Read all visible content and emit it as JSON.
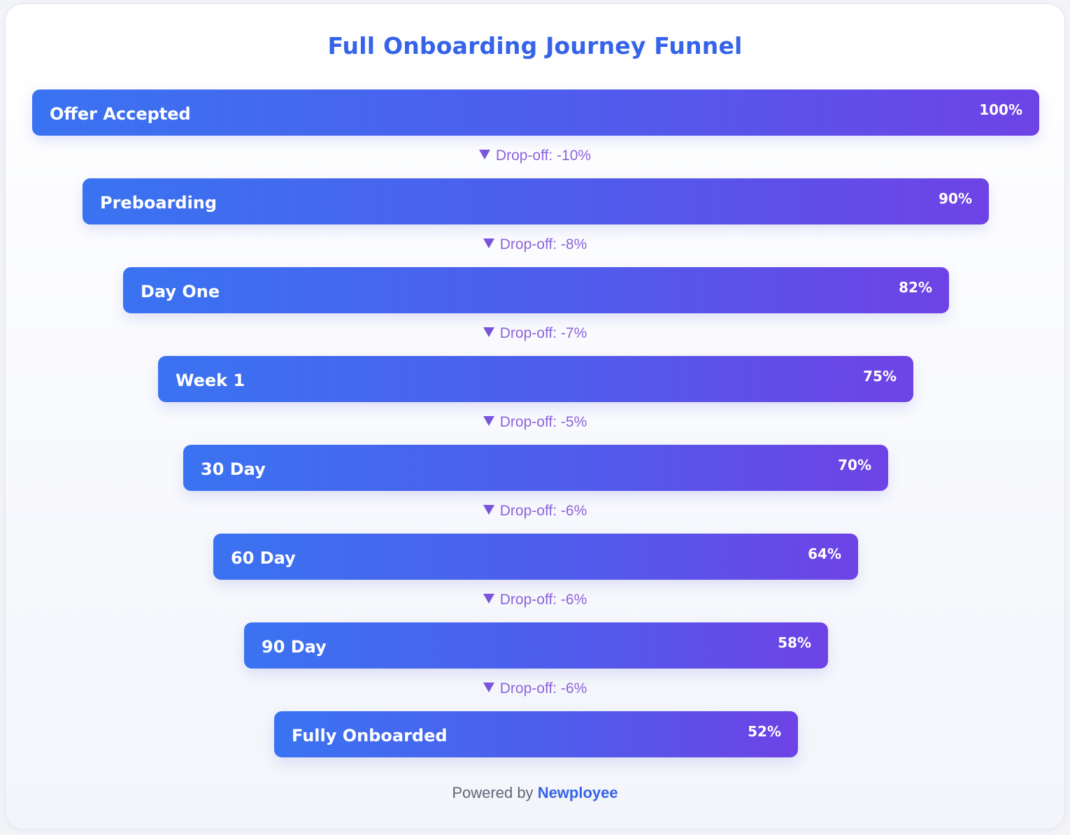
{
  "chart_data": {
    "type": "funnel",
    "title": "Full Onboarding Journey Funnel",
    "stages": [
      {
        "label": "Offer Accepted",
        "value": 100,
        "value_label": "100%"
      },
      {
        "label": "Preboarding",
        "value": 90,
        "value_label": "90%"
      },
      {
        "label": "Day One",
        "value": 82,
        "value_label": "82%"
      },
      {
        "label": "Week 1",
        "value": 75,
        "value_label": "75%"
      },
      {
        "label": "30 Day",
        "value": 70,
        "value_label": "70%"
      },
      {
        "label": "60 Day",
        "value": 64,
        "value_label": "64%"
      },
      {
        "label": "90 Day",
        "value": 58,
        "value_label": "58%"
      },
      {
        "label": "Fully Onboarded",
        "value": 52,
        "value_label": "52%"
      }
    ],
    "dropoffs": [
      "Drop-off: -10%",
      "Drop-off: -8%",
      "Drop-off: -7%",
      "Drop-off: -5%",
      "Drop-off: -6%",
      "Drop-off: -6%",
      "Drop-off: -6%"
    ],
    "dropoff_icon": "down-triangle-icon"
  },
  "footer": {
    "prefix": "Powered by",
    "brand": "Newployee"
  },
  "colors": {
    "title": "#3563e9",
    "bar_start": "#3a73f1",
    "bar_end": "#6e43e6",
    "dropoff_text": "#8b63dc",
    "brand": "#3563e9"
  }
}
